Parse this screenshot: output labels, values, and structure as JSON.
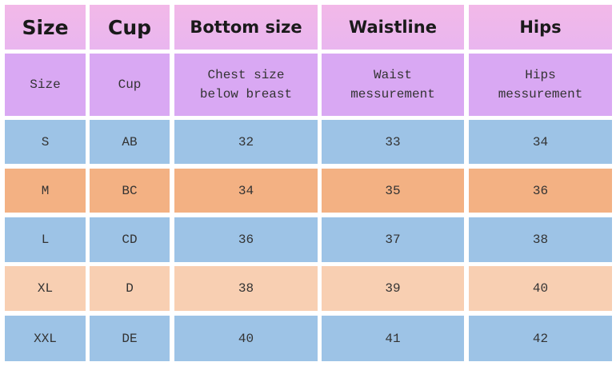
{
  "table": {
    "header": [
      "Size",
      "Cup",
      "Bottom size",
      "Waistline",
      "Hips"
    ],
    "subheader": [
      "Size",
      "Cup",
      "Chest size\nbelow breast",
      "Waist\nmessurement",
      "Hips\nmessurement"
    ],
    "rows": [
      [
        "S",
        "AB",
        "32",
        "33",
        "34"
      ],
      [
        "M",
        "BC",
        "34",
        "35",
        "36"
      ],
      [
        "L",
        "CD",
        "36",
        "37",
        "38"
      ],
      [
        "XL",
        "D",
        "38",
        "39",
        "40"
      ],
      [
        "XXL",
        "DE",
        "40",
        "41",
        "42"
      ]
    ]
  }
}
